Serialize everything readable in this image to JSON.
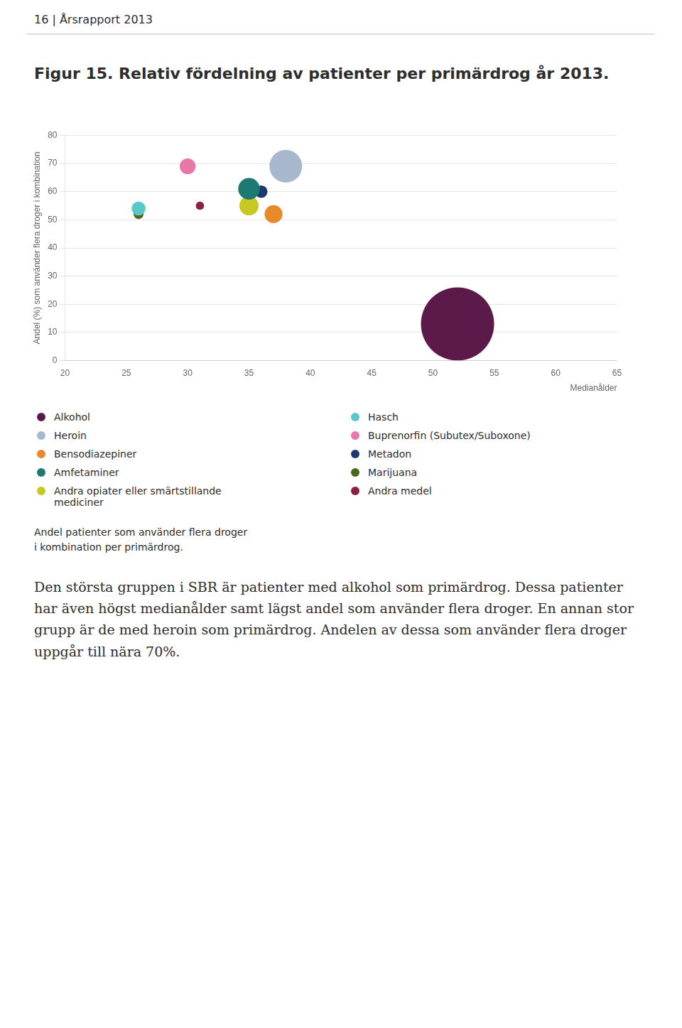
{
  "header": "16 | Årsrapport 2013",
  "chart_data": {
    "type": "bubble",
    "title": "Figur 15. Relativ fördelning av patienter per primärdrog år 2013.",
    "y_label": "Andel (%) som använder flera droger i kombination",
    "x_label": "Medianålder",
    "caption": "Andel patienter som använder flera droger\ni kombination per primärdrog.",
    "annotations": [
      "Den största gruppen i SBR är patienter med alkohol som primärdrog. Dessa patienter har även högst medianålder samt lägst andel som använder flera droger. En annan stor grupp är de med heroin som primärdrog. Andelen av dessa som använder flera droger uppgår till nära 70%."
    ],
    "series": [
      {
        "name": "Alkohol",
        "color": "#5C1A4A",
        "x": [
          52
        ],
        "values": [
          13
        ],
        "sizes": [
          5500
        ]
      },
      {
        "name": "Heroin",
        "color": "#A8B8CC",
        "x": [
          38
        ],
        "values": [
          69
        ],
        "sizes": [
          1100
        ]
      },
      {
        "name": "Bensodiazepiner",
        "color": "#E8892A",
        "x": [
          37
        ],
        "values": [
          52
        ],
        "sizes": [
          330
        ]
      },
      {
        "name": "Amfetaminer",
        "color": "#1D7A72",
        "x": [
          35
        ],
        "values": [
          61
        ],
        "sizes": [
          480
        ]
      },
      {
        "name": "Andra opiater eller smärtstillande mediciner",
        "color": "#C8C820",
        "x": [
          35
        ],
        "values": [
          55
        ],
        "sizes": [
          380
        ]
      },
      {
        "name": "Hasch",
        "color": "#5AC8C8",
        "x": [
          26
        ],
        "values": [
          54
        ],
        "sizes": [
          200
        ]
      },
      {
        "name": "Buprenorfin (Subutex/Suboxone)",
        "color": "#E878A8",
        "x": [
          30
        ],
        "values": [
          69
        ],
        "sizes": [
          260
        ]
      },
      {
        "name": "Metadon",
        "color": "#1A3A6E",
        "x": [
          36
        ],
        "values": [
          60
        ],
        "sizes": [
          160
        ]
      },
      {
        "name": "Marijuana",
        "color": "#4A6A1A",
        "x": [
          26
        ],
        "values": [
          52
        ],
        "sizes": [
          100
        ]
      },
      {
        "name": "Andra medel",
        "color": "#8B2040",
        "x": [
          31
        ],
        "values": [
          55
        ],
        "sizes": [
          70
        ]
      }
    ],
    "xlim": [
      20,
      65
    ],
    "ylim": [
      0,
      80
    ],
    "xticks": [
      20,
      25,
      30,
      35,
      40,
      45,
      50,
      55,
      60,
      65
    ],
    "yticks": [
      0,
      10,
      20,
      30,
      40,
      50,
      60,
      70,
      80
    ],
    "grid": "y",
    "legend": "bottom"
  }
}
